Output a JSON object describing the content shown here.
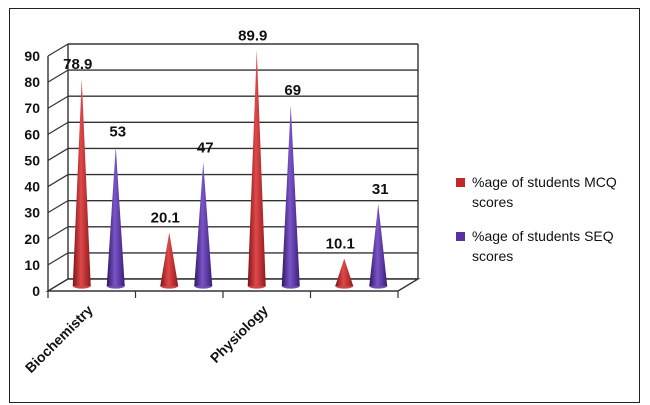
{
  "chart_data": {
    "type": "bar",
    "style": "3d-cone",
    "categories": [
      "Biochemistry",
      "",
      "Physiology",
      ""
    ],
    "series": [
      {
        "name": "%age of students MCQ scores",
        "values": [
          78.9,
          20.1,
          89.9,
          10.1
        ],
        "color": "#c0282b"
      },
      {
        "name": "%age of students SEQ scores",
        "values": [
          53,
          47,
          69,
          31
        ],
        "color": "#5a2fa0"
      }
    ],
    "data_labels": [
      [
        "78.9",
        "20.1",
        "89.9",
        "10.1"
      ],
      [
        "53",
        "47",
        "69",
        "31"
      ]
    ],
    "yticks": [
      "0",
      "10",
      "20",
      "30",
      "40",
      "50",
      "60",
      "70",
      "80",
      "90"
    ],
    "ylim": [
      0,
      90
    ],
    "grid": true,
    "legend_position": "right",
    "title": "",
    "xlabel": "",
    "ylabel": ""
  },
  "legend": {
    "items": [
      {
        "line1": "%age of students MCQ",
        "line2": "scores",
        "color": "#c0282b"
      },
      {
        "line1": "%age of students SEQ",
        "line2": "scores",
        "color": "#5a2fa0"
      }
    ]
  }
}
